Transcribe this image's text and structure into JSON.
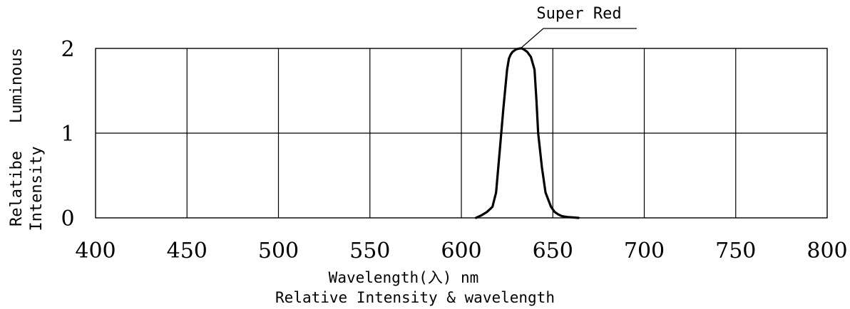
{
  "chart_data": {
    "type": "line",
    "title": "Relative Intensity & wavelength",
    "xlabel": "Wavelength(入) nm",
    "ylabel_lines": [
      "Relatibe",
      "Intensity",
      "Luminous"
    ],
    "xlim": [
      400,
      800
    ],
    "ylim": [
      0,
      2
    ],
    "x_ticks": [
      "400",
      "450",
      "500",
      "550",
      "600",
      "650",
      "700",
      "750",
      "800"
    ],
    "y_ticks": [
      "0",
      "1",
      "2"
    ],
    "grid": true,
    "series": [
      {
        "name": "Super Red",
        "x": [
          608,
          611,
          614,
          617,
          619,
          621,
          623,
          625,
          626,
          627,
          628,
          630,
          632,
          633,
          634,
          636,
          638,
          640,
          641,
          642,
          644,
          646,
          649,
          651,
          653,
          655,
          658,
          661,
          664
        ],
        "y": [
          0.0,
          0.03,
          0.07,
          0.13,
          0.3,
          0.8,
          1.3,
          1.75,
          1.88,
          1.93,
          1.96,
          1.99,
          2.0,
          2.0,
          1.99,
          1.96,
          1.9,
          1.75,
          1.4,
          1.0,
          0.6,
          0.3,
          0.13,
          0.07,
          0.04,
          0.02,
          0.01,
          0.005,
          0.0
        ]
      }
    ]
  }
}
